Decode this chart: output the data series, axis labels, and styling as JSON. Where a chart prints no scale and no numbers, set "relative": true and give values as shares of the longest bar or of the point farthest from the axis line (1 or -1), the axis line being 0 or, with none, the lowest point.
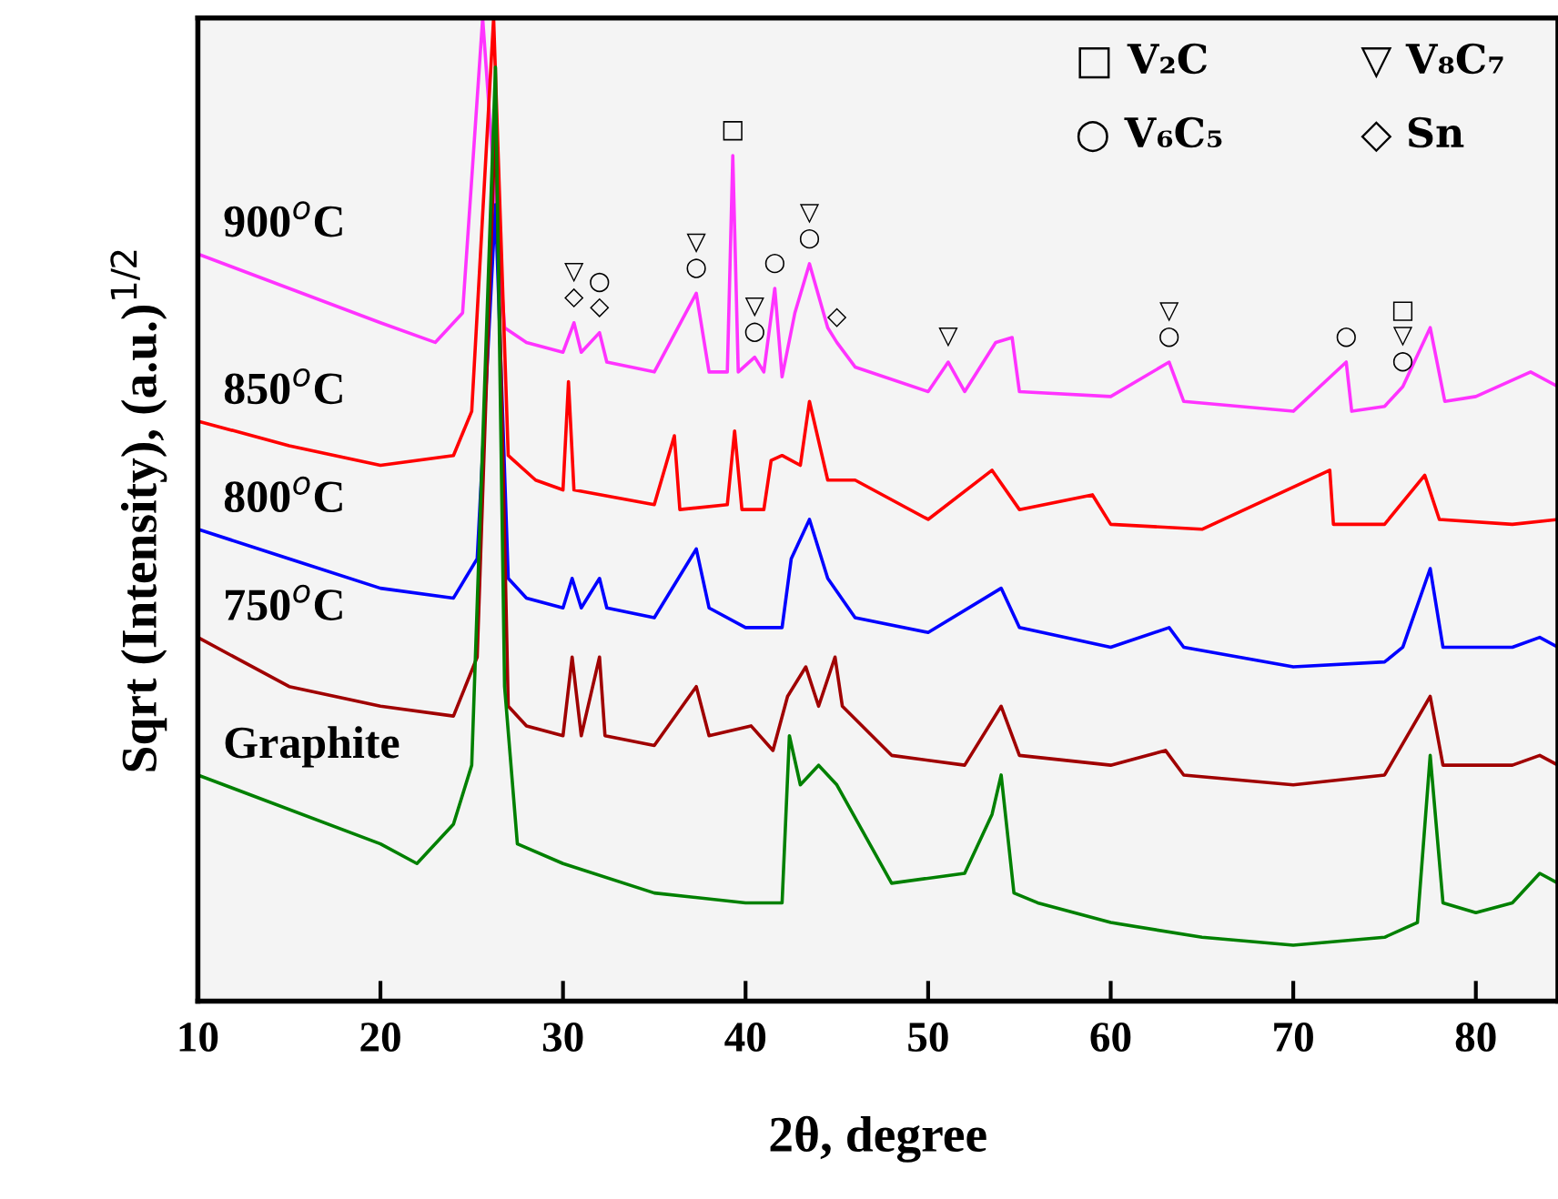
{
  "chart_data": {
    "type": "line",
    "relative": true,
    "xlabel": "2θ, degree",
    "ylabel": "Sqrt (Intensity), (a.u.)$^{1/2}$",
    "xlim": [
      10,
      84.5
    ],
    "xticks": [
      10,
      20,
      30,
      40,
      50,
      60,
      70,
      80
    ],
    "legend": false,
    "grid": false,
    "series": [
      {
        "name": "900$^{o}$C",
        "color": "#ff33ff",
        "x": [
          10,
          15,
          20,
          23,
          24.5,
          25.6,
          26.8,
          28,
          30,
          30.6,
          31,
          32,
          32.4,
          35,
          37.3,
          38,
          39,
          39.3,
          39.6,
          40.5,
          41,
          41.6,
          42,
          42.7,
          43.5,
          44.5,
          45,
          46,
          50,
          51.1,
          52,
          53.7,
          54.6,
          55,
          60,
          63.2,
          64,
          70,
          72.9,
          73.2,
          75,
          76,
          77.5,
          78.3,
          80,
          83,
          84.5
        ],
        "values": [
          0.76,
          0.725,
          0.69,
          0.67,
          0.7,
          1.0,
          0.685,
          0.67,
          0.66,
          0.69,
          0.66,
          0.68,
          0.65,
          0.64,
          0.72,
          0.64,
          0.64,
          0.86,
          0.64,
          0.655,
          0.64,
          0.725,
          0.635,
          0.7,
          0.75,
          0.685,
          0.67,
          0.645,
          0.62,
          0.65,
          0.62,
          0.67,
          0.675,
          0.62,
          0.615,
          0.65,
          0.61,
          0.6,
          0.65,
          0.6,
          0.605,
          0.625,
          0.685,
          0.61,
          0.615,
          0.64,
          0.625
        ]
      },
      {
        "name": "850$^{o}$C",
        "color": "#ff0000",
        "x": [
          10,
          15,
          20,
          24,
          25,
          26.2,
          27,
          28.5,
          30,
          30.3,
          30.6,
          35,
          36.1,
          36.4,
          39,
          39.4,
          39.8,
          41,
          41.4,
          42,
          43,
          43.5,
          44.5,
          46,
          50,
          53.5,
          55,
          59,
          60,
          65,
          72,
          72.2,
          75,
          77.2,
          78,
          82,
          84.5
        ],
        "values": [
          0.59,
          0.565,
          0.545,
          0.555,
          0.6,
          1.0,
          0.555,
          0.53,
          0.52,
          0.63,
          0.52,
          0.505,
          0.575,
          0.5,
          0.505,
          0.58,
          0.5,
          0.5,
          0.55,
          0.555,
          0.545,
          0.61,
          0.53,
          0.53,
          0.49,
          0.54,
          0.5,
          0.515,
          0.485,
          0.48,
          0.54,
          0.485,
          0.485,
          0.535,
          0.49,
          0.485,
          0.49
        ]
      },
      {
        "name": "800$^{o}$C",
        "color": "#0000ff",
        "x": [
          10,
          15,
          20,
          24,
          25.3,
          26.3,
          27,
          28,
          30,
          30.5,
          31,
          32,
          32.4,
          35,
          37.3,
          38,
          40,
          42,
          42.5,
          43.5,
          44.5,
          46,
          50,
          54,
          55,
          60,
          63.2,
          64,
          70,
          75,
          76,
          77.5,
          78.2,
          82,
          83.5,
          84.5
        ],
        "values": [
          0.48,
          0.45,
          0.42,
          0.41,
          0.45,
          0.81,
          0.43,
          0.41,
          0.4,
          0.43,
          0.4,
          0.43,
          0.4,
          0.39,
          0.46,
          0.4,
          0.38,
          0.38,
          0.45,
          0.49,
          0.43,
          0.39,
          0.375,
          0.42,
          0.38,
          0.36,
          0.38,
          0.36,
          0.34,
          0.345,
          0.36,
          0.44,
          0.36,
          0.36,
          0.37,
          0.36
        ]
      },
      {
        "name": "750$^{o}$C",
        "color": "#a00000",
        "x": [
          10,
          15,
          20,
          24,
          25.3,
          26.3,
          27,
          28,
          30,
          30.5,
          31,
          32,
          32.3,
          35,
          37.3,
          38,
          40.3,
          41.5,
          42.3,
          43.3,
          44,
          44.9,
          45.3,
          48,
          52,
          54,
          55,
          60,
          63,
          64,
          70,
          75,
          77.5,
          78.2,
          82,
          83.5,
          84.5
        ],
        "values": [
          0.37,
          0.32,
          0.3,
          0.29,
          0.35,
          0.9,
          0.3,
          0.28,
          0.27,
          0.35,
          0.27,
          0.35,
          0.27,
          0.26,
          0.32,
          0.27,
          0.28,
          0.255,
          0.31,
          0.34,
          0.3,
          0.35,
          0.3,
          0.25,
          0.24,
          0.3,
          0.25,
          0.24,
          0.255,
          0.23,
          0.22,
          0.23,
          0.31,
          0.24,
          0.24,
          0.25,
          0.24
        ]
      },
      {
        "name": "Graphite",
        "color": "#008000",
        "x": [
          10,
          20,
          22,
          24,
          25,
          26.3,
          26.8,
          27.5,
          30,
          35,
          40,
          42,
          42.4,
          43,
          44,
          45,
          48,
          52,
          53.5,
          54,
          54.7,
          56,
          60,
          65,
          70,
          75,
          76.8,
          77.5,
          78.2,
          80,
          82,
          83.5,
          84.5
        ],
        "values": [
          0.23,
          0.16,
          0.14,
          0.18,
          0.24,
          0.95,
          0.32,
          0.16,
          0.14,
          0.11,
          0.1,
          0.1,
          0.27,
          0.22,
          0.24,
          0.22,
          0.12,
          0.13,
          0.19,
          0.23,
          0.11,
          0.1,
          0.08,
          0.065,
          0.057,
          0.065,
          0.08,
          0.25,
          0.1,
          0.09,
          0.1,
          0.13,
          0.12
        ]
      }
    ],
    "annotations": [
      "□ V₂C",
      "▽ V₈C₇",
      "○ V₆C₅",
      "◇ Sn",
      {
        "text": "◇",
        "x": 30.6,
        "y": 0.69
      },
      {
        "text": "▽",
        "x": 30.6,
        "y": 0.69
      },
      {
        "text": "◇",
        "x": 32,
        "y": 0.68
      },
      {
        "text": "○",
        "x": 32,
        "y": 0.68
      },
      {
        "text": "○",
        "x": 37.3,
        "y": 0.72
      },
      {
        "text": "▽",
        "x": 37.3,
        "y": 0.72
      },
      {
        "text": "□",
        "x": 39.3,
        "y": 0.86
      },
      {
        "text": "○",
        "x": 40.5,
        "y": 0.655
      },
      {
        "text": "▽",
        "x": 40.5,
        "y": 0.655
      },
      {
        "text": "○",
        "x": 41.6,
        "y": 0.725
      },
      {
        "text": "○",
        "x": 43.5,
        "y": 0.75
      },
      {
        "text": "▽",
        "x": 43.5,
        "y": 0.75
      },
      {
        "text": "◇",
        "x": 45,
        "y": 0.67
      },
      {
        "text": "▽",
        "x": 51.1,
        "y": 0.65
      },
      {
        "text": "○",
        "x": 63.2,
        "y": 0.65
      },
      {
        "text": "▽",
        "x": 63.2,
        "y": 0.65
      },
      {
        "text": "○",
        "x": 72.9,
        "y": 0.65
      },
      {
        "text": "○",
        "x": 76,
        "y": 0.625
      },
      {
        "text": "▽",
        "x": 76,
        "y": 0.625
      },
      {
        "text": "□",
        "x": 76,
        "y": 0.625
      }
    ]
  }
}
